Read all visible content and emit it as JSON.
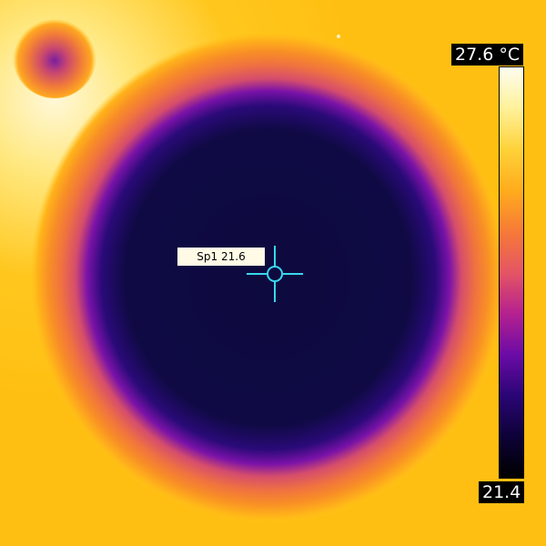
{
  "thermal": {
    "scale": {
      "max_label": "27.6 °C",
      "min_label": "21.4",
      "max_value": 27.6,
      "min_value": 21.4,
      "unit": "°C",
      "palette": [
        "#fdfdf0",
        "#fff19a",
        "#ffd23a",
        "#ffac1c",
        "#f77a38",
        "#e45564",
        "#b5218f",
        "#6b0ba6",
        "#2a0575",
        "#0d0237",
        "#000000"
      ]
    },
    "spot": {
      "label": "Sp1 21.6",
      "name": "Sp1",
      "value": 21.6,
      "marker_color": "#39d6ee"
    },
    "colors": {
      "background": "#ffc21a",
      "cold_core": "#0d0a3e"
    }
  }
}
